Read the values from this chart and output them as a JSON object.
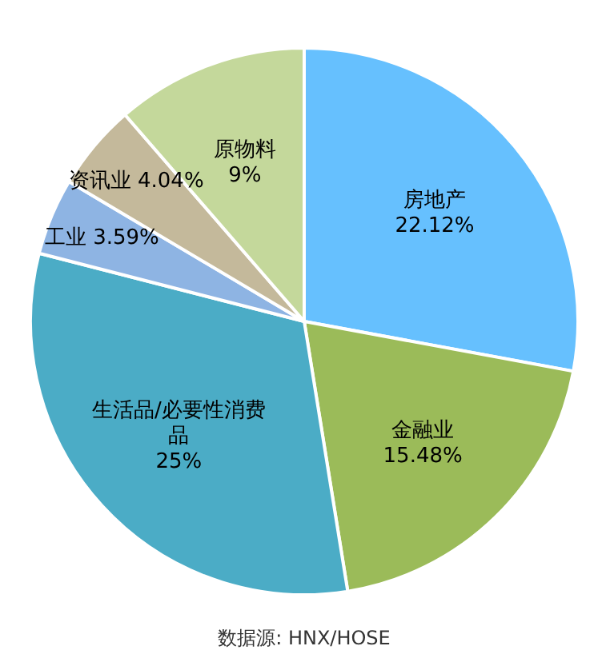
{
  "chart_data": {
    "type": "pie",
    "categories": [
      "房地产",
      "金融业",
      "生活品/必要性消费品",
      "工业",
      "资讯业",
      "原物料"
    ],
    "values": [
      22.12,
      15.48,
      25,
      3.59,
      4.04,
      9
    ],
    "value_labels": [
      "22.12%",
      "15.48%",
      "25%",
      "3.59%",
      "4.04%",
      "9%"
    ],
    "colors": [
      "#66c0fe",
      "#9bbb59",
      "#4bacc6",
      "#8eb4e3",
      "#c4b99b",
      "#c4d89b"
    ],
    "annotations": [
      "数据源: HNX/HOSE"
    ]
  }
}
